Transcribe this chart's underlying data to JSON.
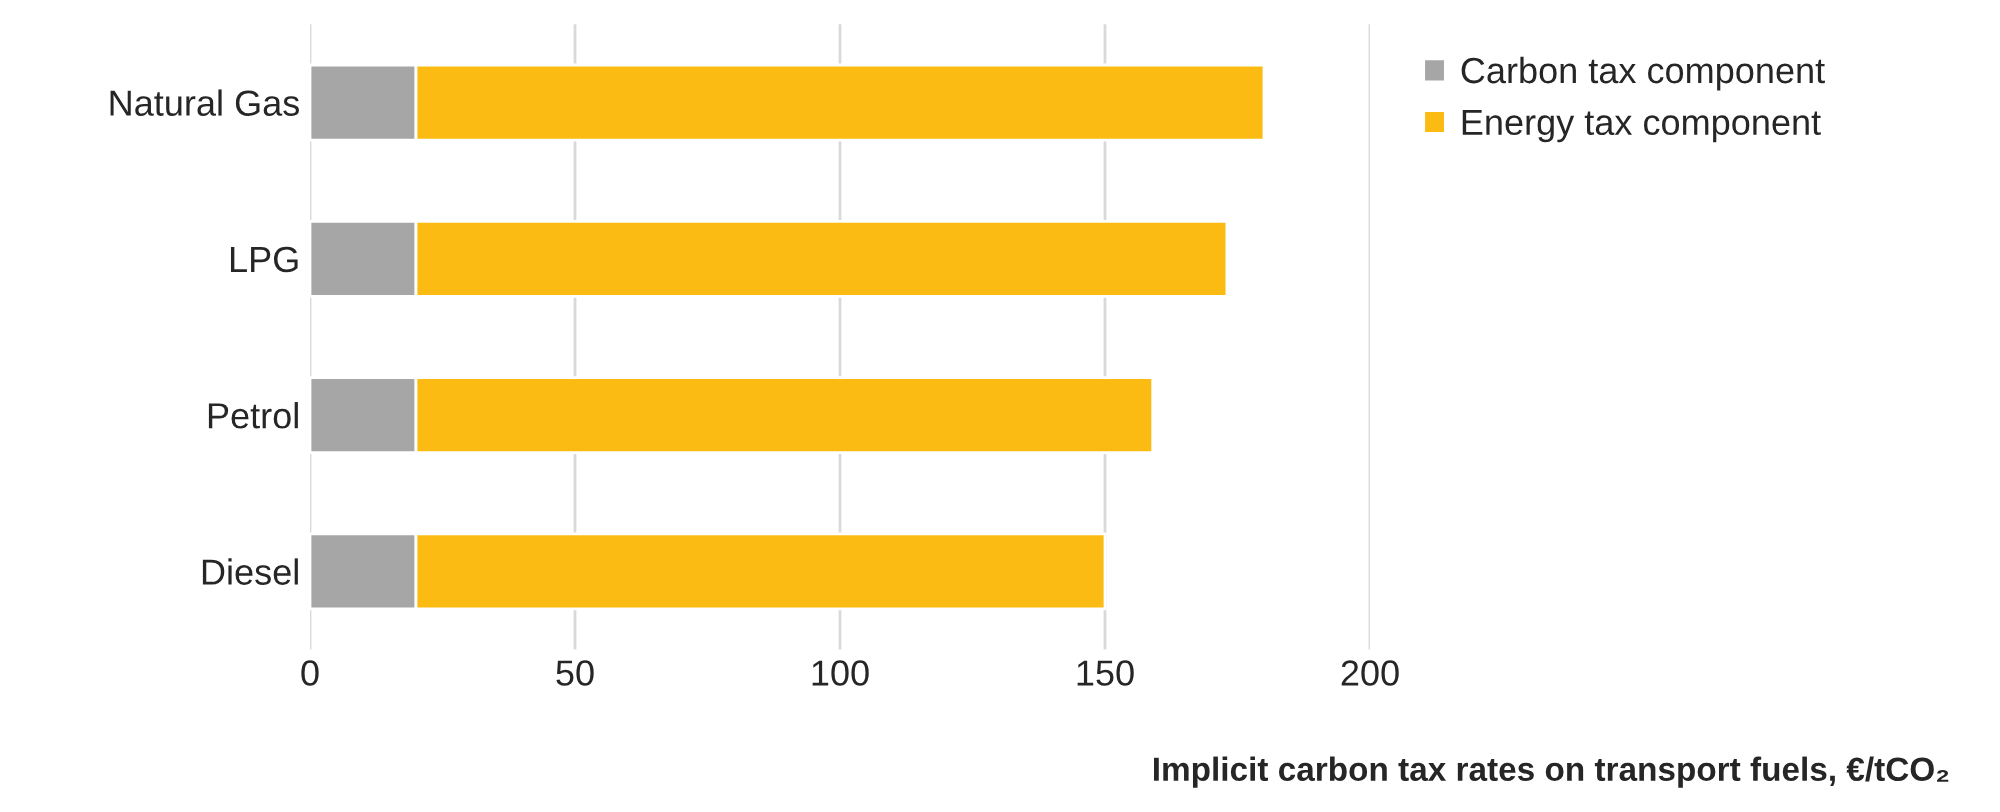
{
  "chart_data": {
    "type": "bar",
    "orientation": "horizontal",
    "stacked": true,
    "categories": [
      "Natural Gas",
      "LPG",
      "Petrol",
      "Diesel"
    ],
    "series": [
      {
        "name": "Carbon tax component",
        "color": "#a6a6a6",
        "values": [
          20,
          20,
          20,
          20
        ]
      },
      {
        "name": "Energy tax component",
        "color": "#fbbb12",
        "values": [
          160,
          153,
          139,
          130
        ]
      }
    ],
    "xlim": [
      0,
      200
    ],
    "xticks": [
      0,
      50,
      100,
      150,
      200
    ],
    "grid": "x",
    "legend": "top right",
    "xlabel": "Implicit carbon tax rates on transport fuels, €/tCO₂"
  }
}
